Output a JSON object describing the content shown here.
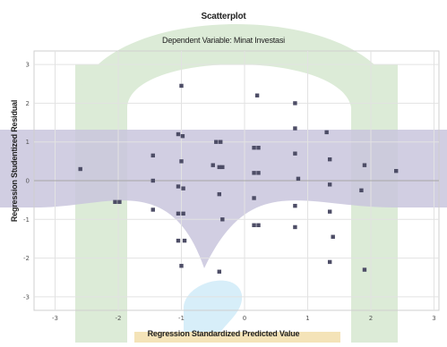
{
  "chart_data": {
    "type": "scatter",
    "title": "Scatterplot",
    "subtitle": "Dependent Variable: Minat Investasi",
    "xlabel": "Regression Standardized Predicted Value",
    "ylabel": "Regression Studentized Residual",
    "xlim": [
      -3.3,
      3.1
    ],
    "ylim": [
      -3.4,
      3.4
    ],
    "xticks": [
      -3,
      -2,
      -1,
      0,
      1,
      2,
      3
    ],
    "yticks": [
      -3,
      -2,
      -1,
      0,
      1,
      2,
      3
    ],
    "grid": true,
    "points": [
      {
        "x": -2.6,
        "y": 0.3
      },
      {
        "x": -2.05,
        "y": -0.55
      },
      {
        "x": -1.98,
        "y": -0.55
      },
      {
        "x": -1.45,
        "y": 0.65
      },
      {
        "x": -1.45,
        "y": 0.0
      },
      {
        "x": -1.45,
        "y": -0.75
      },
      {
        "x": -1.0,
        "y": 2.45
      },
      {
        "x": -1.05,
        "y": 1.2
      },
      {
        "x": -0.98,
        "y": 1.15
      },
      {
        "x": -1.0,
        "y": 0.5
      },
      {
        "x": -1.05,
        "y": -0.15
      },
      {
        "x": -0.97,
        "y": -0.2
      },
      {
        "x": -1.05,
        "y": -0.85
      },
      {
        "x": -0.97,
        "y": -0.85
      },
      {
        "x": -1.05,
        "y": -1.55
      },
      {
        "x": -0.95,
        "y": -1.55
      },
      {
        "x": -1.0,
        "y": -2.2
      },
      {
        "x": -0.45,
        "y": 1.0
      },
      {
        "x": -0.38,
        "y": 1.0
      },
      {
        "x": -0.5,
        "y": 0.4
      },
      {
        "x": -0.4,
        "y": 0.35
      },
      {
        "x": -0.35,
        "y": 0.35
      },
      {
        "x": -0.4,
        "y": -0.35
      },
      {
        "x": -0.35,
        "y": -1.0
      },
      {
        "x": -0.4,
        "y": -2.35
      },
      {
        "x": 0.2,
        "y": 2.2
      },
      {
        "x": 0.15,
        "y": 0.85
      },
      {
        "x": 0.22,
        "y": 0.85
      },
      {
        "x": 0.15,
        "y": 0.2
      },
      {
        "x": 0.22,
        "y": 0.2
      },
      {
        "x": 0.15,
        "y": -0.45
      },
      {
        "x": 0.15,
        "y": -1.15
      },
      {
        "x": 0.22,
        "y": -1.15
      },
      {
        "x": 0.8,
        "y": 2.0
      },
      {
        "x": 0.8,
        "y": 1.35
      },
      {
        "x": 0.8,
        "y": 0.7
      },
      {
        "x": 0.85,
        "y": 0.05
      },
      {
        "x": 0.8,
        "y": -0.65
      },
      {
        "x": 0.8,
        "y": -1.2
      },
      {
        "x": 1.3,
        "y": 1.25
      },
      {
        "x": 1.35,
        "y": 0.55
      },
      {
        "x": 1.35,
        "y": -0.1
      },
      {
        "x": 1.35,
        "y": -0.8
      },
      {
        "x": 1.4,
        "y": -1.45
      },
      {
        "x": 1.35,
        "y": -2.1
      },
      {
        "x": 1.85,
        "y": -0.25
      },
      {
        "x": 1.9,
        "y": 0.4
      },
      {
        "x": 1.9,
        "y": -2.3
      },
      {
        "x": 2.4,
        "y": 0.25
      }
    ],
    "colors": {
      "background": "#ffffff",
      "border": "#cfcfcf",
      "grid": "#e2e2e2",
      "zero_line": "#a7a7a7",
      "point": "#4d4d66",
      "watermark_green": "#dcebd7",
      "watermark_purple": "#c9c5dd",
      "watermark_blue": "#d7eef9",
      "watermark_gold": "#f4e3b8",
      "text": "#222222",
      "tick_text": "#555555"
    }
  }
}
